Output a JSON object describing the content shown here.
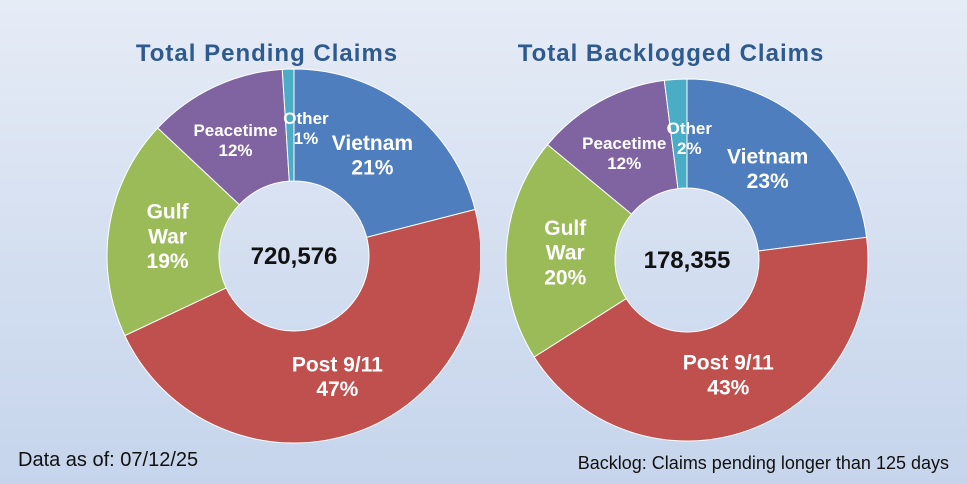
{
  "chart_data": [
    {
      "type": "pie",
      "title": "Total Pending Claims",
      "center_label": "720,576",
      "slices": [
        {
          "name": "Vietnam",
          "value": 21,
          "label": "21%",
          "color": "#4e7ebd"
        },
        {
          "name": "Post 9/11",
          "value": 47,
          "label": "47%",
          "color": "#c0504d"
        },
        {
          "name": "Gulf War",
          "value": 19,
          "label": "19%",
          "color": "#9bbb59"
        },
        {
          "name": "Peacetime",
          "value": 12,
          "label": "12%",
          "color": "#8064a2"
        },
        {
          "name": "Other",
          "value": 1,
          "label": "1%",
          "color": "#4bacc6"
        }
      ]
    },
    {
      "type": "pie",
      "title": "Total Backlogged Claims",
      "center_label": "178,355",
      "slices": [
        {
          "name": "Vietnam",
          "value": 23,
          "label": "23%",
          "color": "#4e7ebd"
        },
        {
          "name": "Post 9/11",
          "value": 43,
          "label": "43%",
          "color": "#c0504d"
        },
        {
          "name": "Gulf War",
          "value": 20,
          "label": "20%",
          "color": "#9bbb59"
        },
        {
          "name": "Peacetime",
          "value": 12,
          "label": "12%",
          "color": "#8064a2"
        },
        {
          "name": "Other",
          "value": 2,
          "label": "2%",
          "color": "#4bacc6"
        }
      ]
    }
  ],
  "footnotes": {
    "data_as_of": "Data as of: 07/12/25",
    "backlog_definition": "Backlog: Claims pending longer than 125 days"
  }
}
